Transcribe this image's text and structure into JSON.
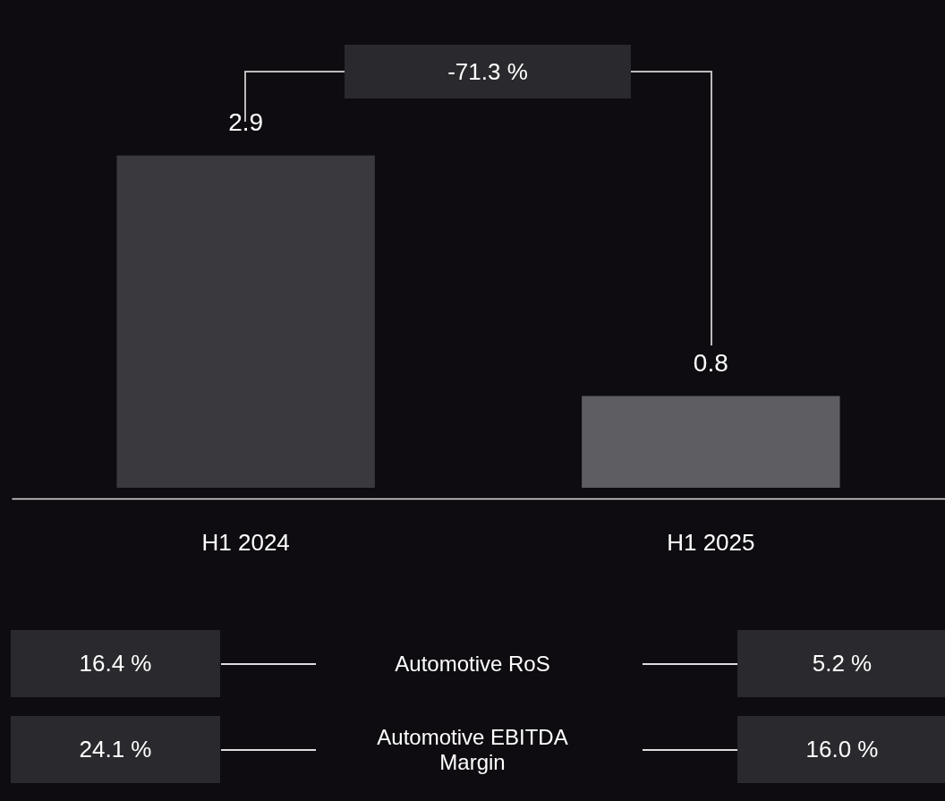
{
  "chart_data": {
    "type": "bar",
    "categories": [
      "H1 2024",
      "H1 2025"
    ],
    "values": [
      2.9,
      0.8
    ],
    "colors": [
      "#3a3a3e",
      "#5e5e62"
    ],
    "data_labels": true,
    "annotations": [
      "-71.3 %",
      "16.4 %",
      "Automotive RoS",
      "5.2 %",
      "24.1 %",
      "Automotive EBITDA Margin",
      "16.0 %"
    ]
  }
}
